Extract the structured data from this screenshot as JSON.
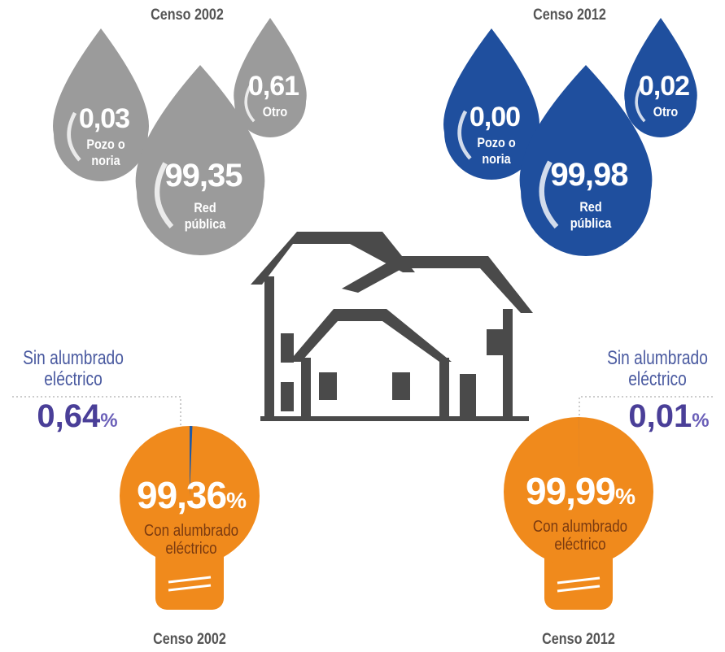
{
  "water": [
    {
      "title": "Censo 2002",
      "drops": [
        {
          "value": "0,03",
          "label": "Pozo o noria"
        },
        {
          "value": "99,35",
          "label": "Red pública"
        },
        {
          "value": "0,61",
          "label": "Otro"
        }
      ]
    },
    {
      "title": "Censo 2012",
      "drops": [
        {
          "value": "0,00",
          "label": "Pozo o noria"
        },
        {
          "value": "99,98",
          "label": "Red pública"
        },
        {
          "value": "0,02",
          "label": "Otro"
        }
      ]
    }
  ],
  "lighting": [
    {
      "title": "Censo 2002",
      "without": {
        "label": "Sin alumbrado eléctrico",
        "value": 0.64,
        "value_label": "0,64",
        "unit": "%"
      },
      "with": {
        "label": "Con alumbrado eléctrico",
        "value": 99.36,
        "value_label": "99,36",
        "unit": "%"
      }
    },
    {
      "title": "Censo 2012",
      "without": {
        "label": "Sin alumbrado eléctrico",
        "value": 0.01,
        "value_label": "0,01",
        "unit": "%"
      },
      "with": {
        "label": "Con alumbrado eléctrico",
        "value": 99.99,
        "value_label": "99,99",
        "unit": "%"
      }
    }
  ]
}
